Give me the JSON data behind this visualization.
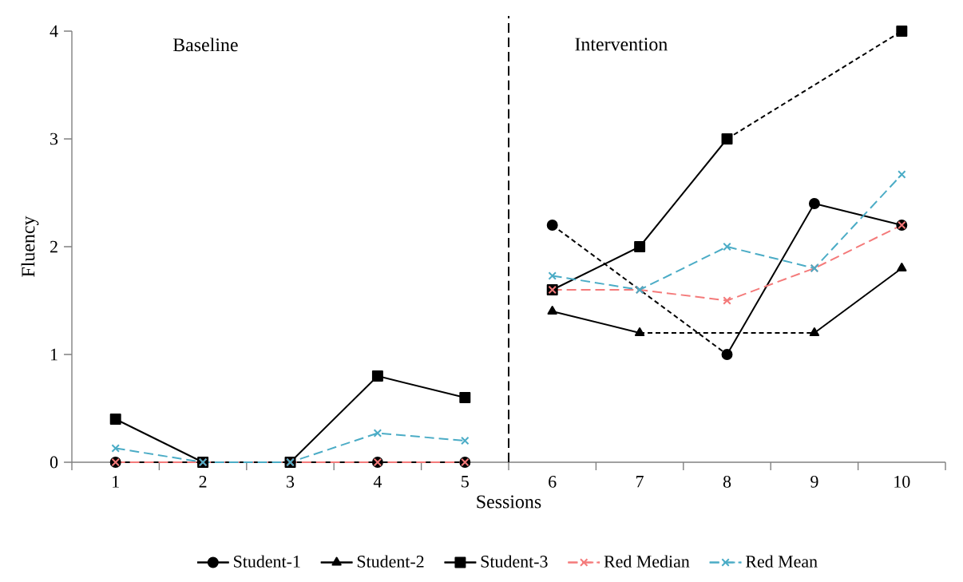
{
  "chart_data": {
    "type": "line",
    "xlabel": "Sessions",
    "ylabel": "Fluency",
    "x": [
      1,
      2,
      3,
      4,
      5,
      6,
      7,
      8,
      9,
      10
    ],
    "xlim": [
      0.5,
      10.5
    ],
    "xticks": [
      1,
      2,
      3,
      4,
      5,
      6,
      7,
      8,
      9,
      10
    ],
    "ylim": [
      0,
      4
    ],
    "yticks": [
      0,
      1,
      2,
      3,
      4
    ],
    "legend": "bottom",
    "series": [
      {
        "name": "Student-1",
        "color": "#000000",
        "marker": "circle",
        "line_style": "solid",
        "values": [
          0,
          0,
          0,
          0,
          0,
          2.2,
          null,
          1.0,
          2.4,
          2.2
        ]
      },
      {
        "name": "Student-2",
        "color": "#000000",
        "marker": "triangle",
        "line_style": "solid",
        "values": [
          0,
          0,
          0,
          0,
          0,
          1.4,
          1.2,
          null,
          1.2,
          1.8
        ]
      },
      {
        "name": "Student-3",
        "color": "#000000",
        "marker": "square",
        "line_style": "solid",
        "values": [
          0.4,
          0,
          0,
          0.8,
          0.6,
          1.6,
          2.0,
          3.0,
          null,
          4.0
        ]
      },
      {
        "name": "Red Median",
        "color": "#f47a7a",
        "marker": "cross",
        "line_style": "dashed",
        "values": [
          0,
          0,
          0,
          0,
          0,
          1.6,
          1.6,
          1.5,
          1.8,
          2.2
        ]
      },
      {
        "name": "Red Mean",
        "color": "#4bacc6",
        "marker": "cross",
        "line_style": "dashed",
        "values": [
          0.13,
          0,
          0,
          0.27,
          0.2,
          1.73,
          1.6,
          2.0,
          1.8,
          2.67
        ]
      }
    ],
    "ref_lines": [
      {
        "axis": "x",
        "value": 5.5,
        "color": "#000000",
        "line_style": "dashed"
      }
    ],
    "annotations": [
      "Baseline",
      "Intervention"
    ]
  }
}
